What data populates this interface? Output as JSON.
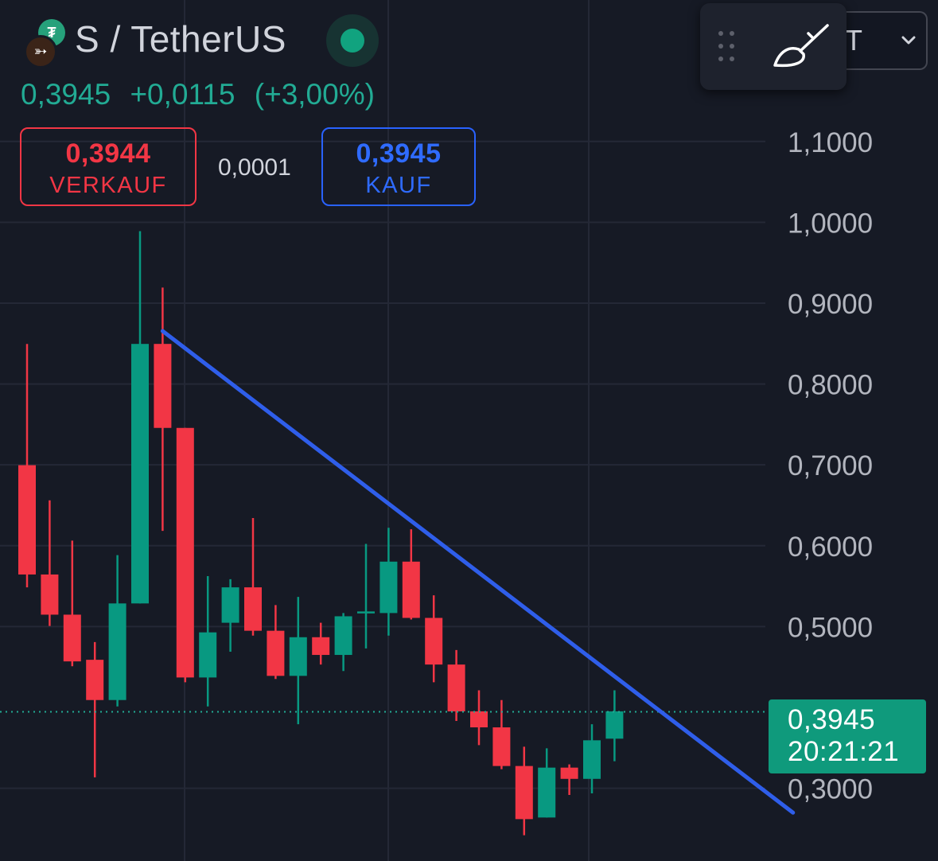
{
  "header": {
    "pair_title": "S / TetherUS",
    "last_price": "0,3945",
    "change_abs": "+0,0115",
    "change_pct": "(+3,00%)",
    "interval_partial": "T"
  },
  "trade": {
    "sell_price": "0,3944",
    "sell_label": "VERKAUF",
    "spread": "0,0001",
    "buy_price": "0,3945",
    "buy_label": "KAUF"
  },
  "current_price_tag": {
    "price": "0,3945",
    "countdown": "20:21:21"
  },
  "icons": {
    "base_coin": "sonic-coin-icon",
    "quote_coin": "tether-coin-icon",
    "status": "market-open-status-icon",
    "drag": "drag-handle-icon",
    "brush": "brush-drawing-icon",
    "dropdown": "chevron-down-icon"
  },
  "colors": {
    "background": "#161a25",
    "up": "#089981",
    "down": "#f23645",
    "trendline": "#2f5eea",
    "buy": "#2962ff",
    "grid": "#242836",
    "axis_text": "#b2b5be"
  },
  "chart_data": {
    "type": "candlestick",
    "y_ticks": [
      {
        "value": 0.3,
        "label": "0,3000"
      },
      {
        "value": 0.5,
        "label": "0,5000"
      },
      {
        "value": 0.6,
        "label": "0,6000"
      },
      {
        "value": 0.7,
        "label": "0,7000"
      },
      {
        "value": 0.8,
        "label": "0,8000"
      },
      {
        "value": 0.9,
        "label": "0,9000"
      },
      {
        "value": 1.0,
        "label": "1,0000"
      },
      {
        "value": 1.1,
        "label": "1,1000"
      }
    ],
    "ylim": [
      0.21,
      1.275
    ],
    "grid": true,
    "current_price": 0.3945,
    "candles": [
      {
        "o": 0.6996,
        "h": 0.8496,
        "l": 0.5485,
        "c": 0.5644
      },
      {
        "o": 0.5644,
        "h": 0.6561,
        "l": 0.5007,
        "c": 0.5147
      },
      {
        "o": 0.5147,
        "h": 0.6063,
        "l": 0.4509,
        "c": 0.4569
      },
      {
        "o": 0.4589,
        "h": 0.4808,
        "l": 0.3135,
        "c": 0.4091
      },
      {
        "o": 0.4091,
        "h": 0.5883,
        "l": 0.4012,
        "c": 0.5286
      },
      {
        "o": 0.5286,
        "h": 0.9891,
        "l": 0.5286,
        "c": 0.8496
      },
      {
        "o": 0.8496,
        "h": 0.9193,
        "l": 0.6183,
        "c": 0.7457
      },
      {
        "o": 0.7457,
        "h": 0.7457,
        "l": 0.4311,
        "c": 0.437
      },
      {
        "o": 0.437,
        "h": 0.5624,
        "l": 0.4012,
        "c": 0.4928
      },
      {
        "o": 0.5047,
        "h": 0.5585,
        "l": 0.4689,
        "c": 0.5485
      },
      {
        "o": 0.5485,
        "h": 0.6342,
        "l": 0.4888,
        "c": 0.4948
      },
      {
        "o": 0.4948,
        "h": 0.5266,
        "l": 0.4351,
        "c": 0.439
      },
      {
        "o": 0.439,
        "h": 0.5366,
        "l": 0.3792,
        "c": 0.4868
      },
      {
        "o": 0.4868,
        "h": 0.5047,
        "l": 0.453,
        "c": 0.4649
      },
      {
        "o": 0.4649,
        "h": 0.5167,
        "l": 0.445,
        "c": 0.5127
      },
      {
        "o": 0.5167,
        "h": 0.6023,
        "l": 0.4729,
        "c": 0.5187
      },
      {
        "o": 0.5167,
        "h": 0.6222,
        "l": 0.4888,
        "c": 0.5803
      },
      {
        "o": 0.5803,
        "h": 0.6203,
        "l": 0.5087,
        "c": 0.5107
      },
      {
        "o": 0.5107,
        "h": 0.5386,
        "l": 0.4311,
        "c": 0.453
      },
      {
        "o": 0.453,
        "h": 0.4709,
        "l": 0.3832,
        "c": 0.3951
      },
      {
        "o": 0.3951,
        "h": 0.4211,
        "l": 0.3533,
        "c": 0.3753
      },
      {
        "o": 0.3753,
        "h": 0.4091,
        "l": 0.3236,
        "c": 0.3275
      },
      {
        "o": 0.3275,
        "h": 0.3514,
        "l": 0.2419,
        "c": 0.2618
      },
      {
        "o": 0.2638,
        "h": 0.3494,
        "l": 0.2638,
        "c": 0.3255
      },
      {
        "o": 0.3255,
        "h": 0.3295,
        "l": 0.2917,
        "c": 0.3116
      },
      {
        "o": 0.3116,
        "h": 0.3792,
        "l": 0.2937,
        "c": 0.3593
      },
      {
        "o": 0.3613,
        "h": 0.4211,
        "l": 0.3334,
        "c": 0.3951
      }
    ],
    "trendline": {
      "start": {
        "candle_index": 6.0,
        "price": 0.8655
      },
      "end": {
        "candle_index": 33.9,
        "price": 0.2698
      }
    }
  }
}
